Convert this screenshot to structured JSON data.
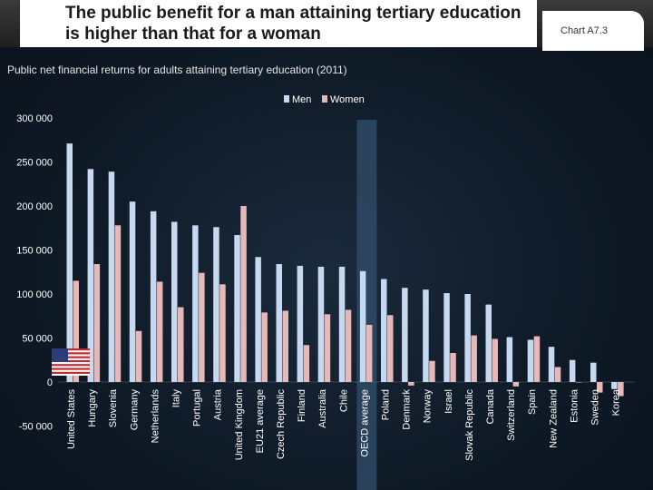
{
  "header": {
    "title": "The public benefit for a man attaining tertiary education is higher than that for a woman",
    "chart_id": "Chart A7.3"
  },
  "colors": {
    "men": "#c6d9f0",
    "women": "#e6b9b8",
    "highlight": "#2f4a66",
    "text": "#ffffff",
    "grid": "#3a4a5a"
  },
  "icons": {
    "flag": "us-flag-icon"
  },
  "chart_data": {
    "type": "bar",
    "subtitle": "Public net financial returns for adults attaining tertiary education (2011)",
    "legend_position": "top-center",
    "grid": false,
    "ylim": [
      -50000,
      300000
    ],
    "yticks": [
      -50000,
      0,
      50000,
      100000,
      150000,
      200000,
      250000,
      300000
    ],
    "ytick_labels": [
      "-50 000",
      "0",
      "50 000",
      "100 000",
      "150 000",
      "200 000",
      "250 000",
      "300 000"
    ],
    "highlight_category": "OECD average",
    "categories": [
      "United States",
      "Hungary",
      "Slovenia",
      "Germany",
      "Netherlands",
      "Italy",
      "Portugal",
      "Austria",
      "United Kingdom",
      "EU21 average",
      "Czech Republic",
      "Finland",
      "Australia",
      "Chile",
      "OECD average",
      "Poland",
      "Denmark",
      "Norway",
      "Israel",
      "Slovak Republic",
      "Canada",
      "Switzerland",
      "Spain",
      "New Zealand",
      "Estonia",
      "Sweden",
      "Korea"
    ],
    "series": [
      {
        "name": "Men",
        "values": [
          271000,
          242000,
          239000,
          205000,
          194000,
          182000,
          178000,
          176000,
          167000,
          142000,
          134000,
          132000,
          131000,
          131000,
          126000,
          117000,
          107000,
          105000,
          101000,
          100000,
          88000,
          51000,
          48000,
          40000,
          25000,
          22000,
          -8000
        ]
      },
      {
        "name": "Women",
        "values": [
          115000,
          134000,
          178000,
          58000,
          114000,
          85000,
          124000,
          111000,
          200000,
          79000,
          81000,
          42000,
          77000,
          82000,
          65000,
          76000,
          -4000,
          24000,
          33000,
          53000,
          49000,
          -5000,
          52000,
          17000,
          0,
          -12000,
          -16000
        ]
      }
    ]
  }
}
